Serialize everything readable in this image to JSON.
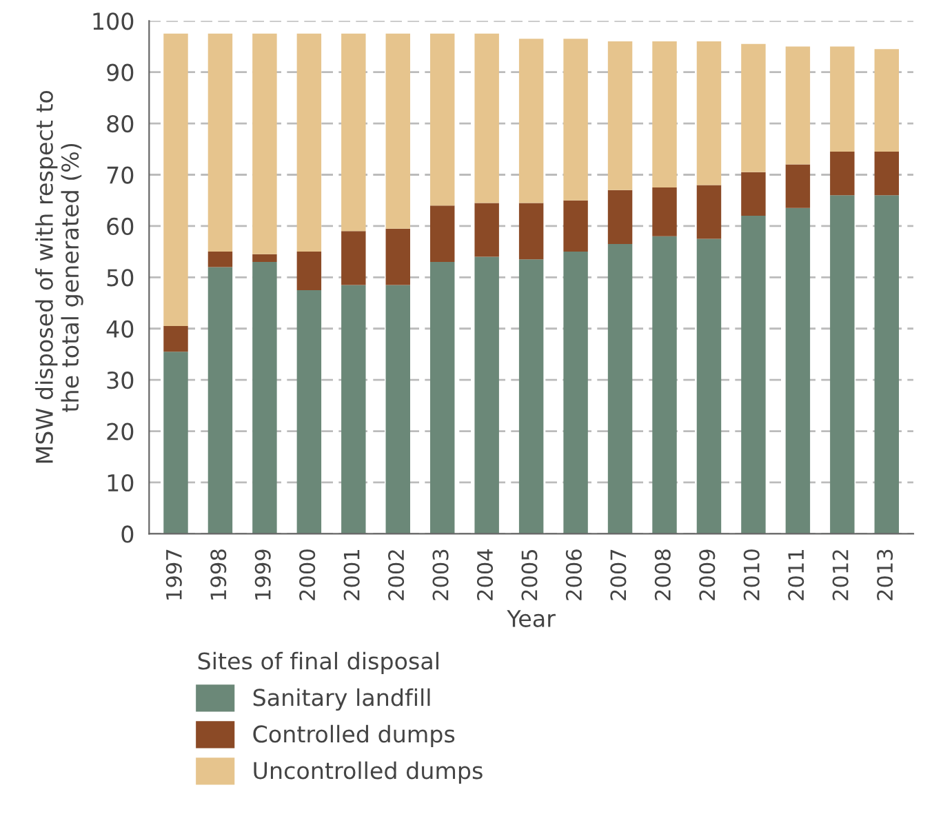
{
  "chart_data": {
    "type": "bar",
    "stacked": true,
    "xlabel": "Year",
    "ylabel": "MSW disposed of with respect to\nthe total generated (%)",
    "legend_title": "Sites of final disposal",
    "categories": [
      "1997",
      "1998",
      "1999",
      "2000",
      "2001",
      "2002",
      "2003",
      "2004",
      "2005",
      "2006",
      "2007",
      "2008",
      "2009",
      "2010",
      "2011",
      "2012",
      "2013"
    ],
    "series": [
      {
        "name": "Sanitary landfill",
        "color": "#6b8878",
        "values": [
          35.5,
          52,
          53,
          47.5,
          48.5,
          48.5,
          53,
          54,
          53.5,
          55,
          56.5,
          58,
          57.5,
          62,
          63.5,
          66,
          66
        ]
      },
      {
        "name": "Controlled dumps",
        "color": "#8b4a26",
        "values": [
          5,
          3,
          1.5,
          7.5,
          10.5,
          11,
          11,
          10.5,
          11,
          10,
          10.5,
          9.5,
          10.5,
          8.5,
          8.5,
          8.5,
          8.5
        ]
      },
      {
        "name": "Uncontrolled dumps",
        "color": "#e6c48d",
        "values": [
          57,
          42.5,
          43,
          42.5,
          38.5,
          38,
          33.5,
          33,
          32,
          31.5,
          29,
          28.5,
          28,
          25,
          23,
          20.5,
          20
        ]
      }
    ],
    "ylim": [
      0,
      100
    ],
    "yticks": [
      0,
      10,
      20,
      30,
      40,
      50,
      60,
      70,
      80,
      90,
      100
    ],
    "grid": "y",
    "legend": "bottom"
  }
}
